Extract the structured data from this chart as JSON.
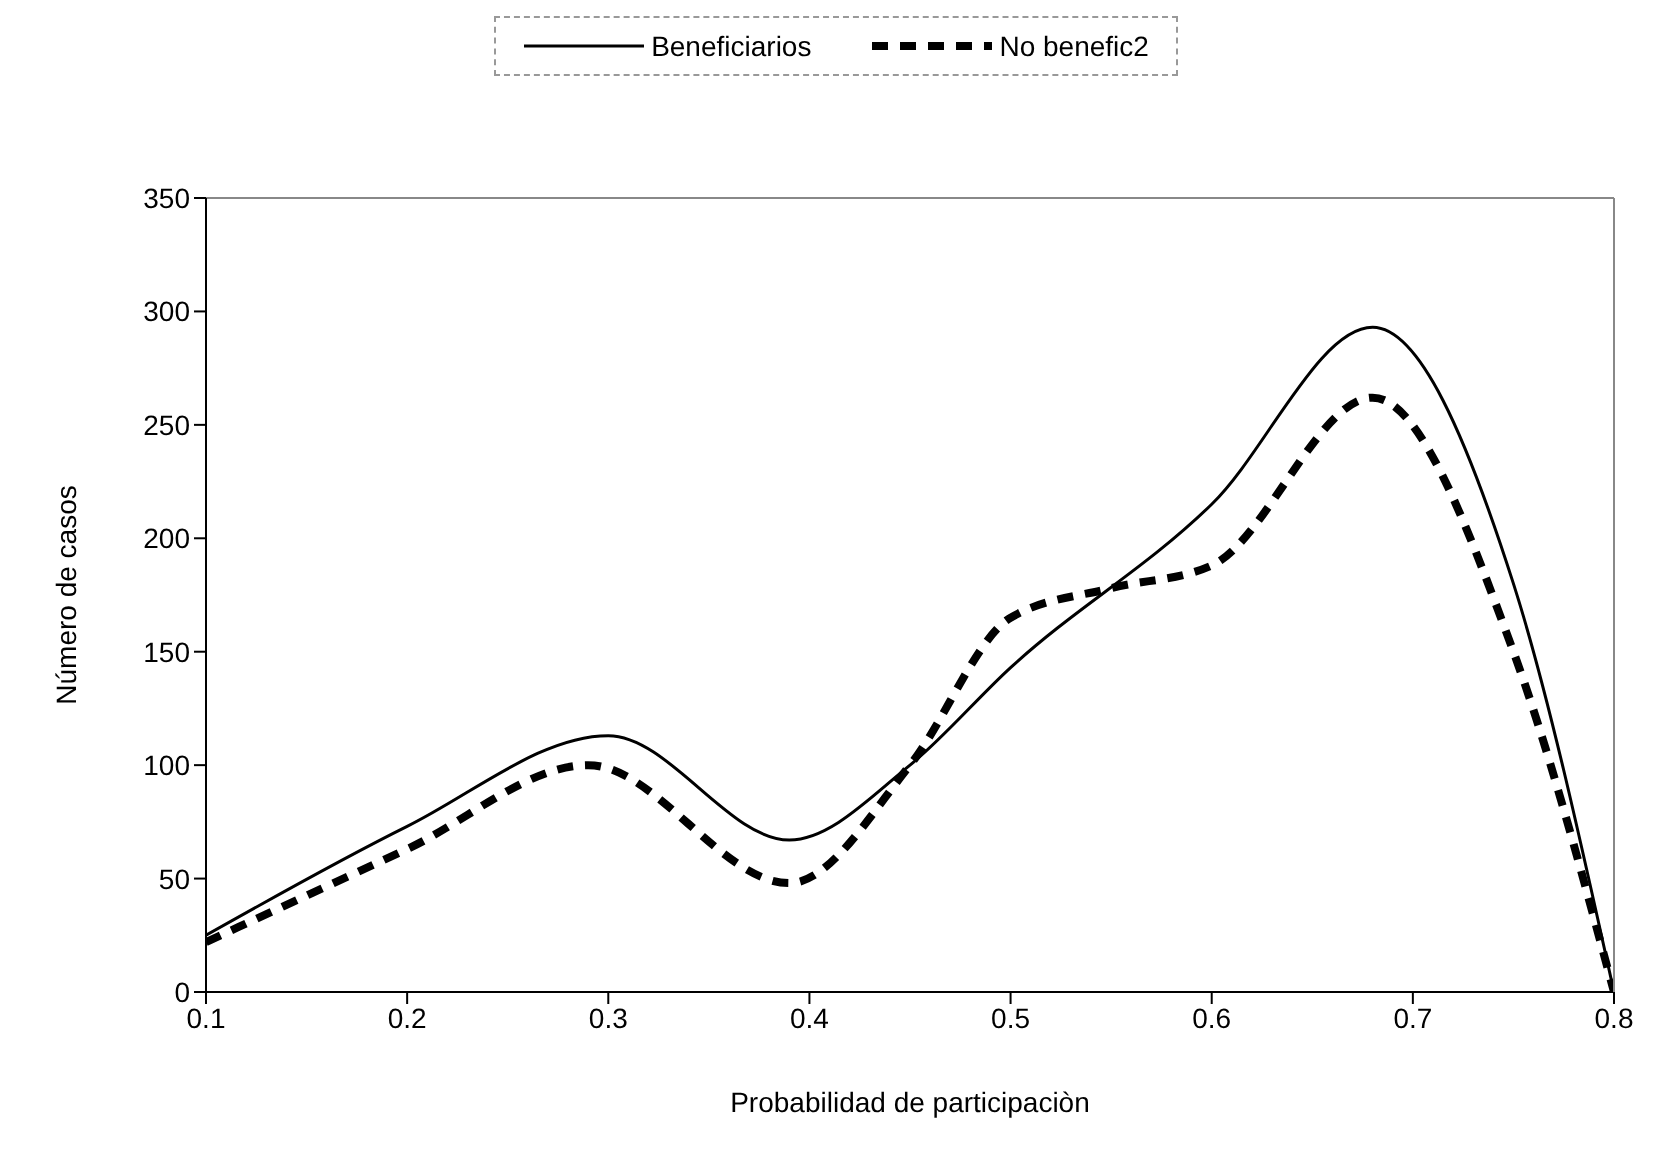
{
  "chart_data": {
    "type": "line",
    "xlabel": "Probabilidad de participaciòn",
    "ylabel": "Número de casos",
    "xlim": [
      0.1,
      0.8
    ],
    "xticks": [
      0.1,
      0.2,
      0.3,
      0.4,
      0.5,
      0.6,
      0.7,
      0.8
    ],
    "ylim": [
      0,
      350
    ],
    "yticks": [
      0,
      50,
      100,
      150,
      200,
      250,
      300,
      350
    ],
    "legend": "top",
    "marker": "none",
    "series": [
      {
        "name": "Beneficiarios",
        "color": "#000000",
        "line_style": "solid",
        "x": [
          0.1,
          0.2,
          0.3,
          0.39,
          0.45,
          0.5,
          0.6,
          0.68,
          0.75,
          0.8
        ],
        "values": [
          25,
          73,
          113,
          67,
          100,
          143,
          215,
          293,
          180,
          0
        ]
      },
      {
        "name": "No benefic2",
        "color": "#000000",
        "line_style": "dashed",
        "x": [
          0.1,
          0.2,
          0.29,
          0.39,
          0.45,
          0.5,
          0.55,
          0.6,
          0.68,
          0.75,
          0.8
        ],
        "values": [
          22,
          63,
          100,
          48,
          100,
          165,
          178,
          188,
          262,
          150,
          0
        ]
      }
    ]
  }
}
